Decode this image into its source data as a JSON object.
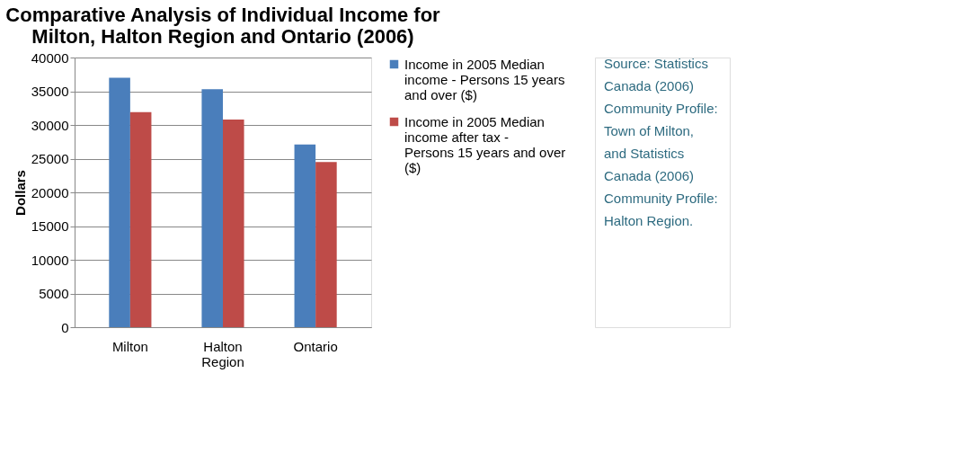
{
  "chart_data": {
    "type": "bar",
    "title": [
      "Comparative Analysis of Individual Income for",
      "Milton, Halton Region and Ontario (2006)"
    ],
    "ylabel": "Dollars",
    "categories": [
      "Milton",
      "Halton Region",
      "Ontario"
    ],
    "series": [
      {
        "name": "Income in 2005    Median income - Persons 15 years and over ($)",
        "color": "#4a7ebb",
        "values": [
          37000,
          35300,
          27100
        ]
      },
      {
        "name": "Income in 2005    Median income after tax - Persons 15 years and over ($)",
        "color": "#be4b48",
        "values": [
          31900,
          30800,
          24500
        ]
      }
    ],
    "ylim": [
      0,
      40000
    ],
    "yticks": [
      0,
      5000,
      10000,
      15000,
      20000,
      25000,
      30000,
      35000,
      40000
    ],
    "grid": "y",
    "legend": "right",
    "annotations": [
      "Source: Statistics Canada (2006) Community Profile: Town of Milton, and Statistics Canada (2006) Community Profile: Halton Region."
    ]
  }
}
